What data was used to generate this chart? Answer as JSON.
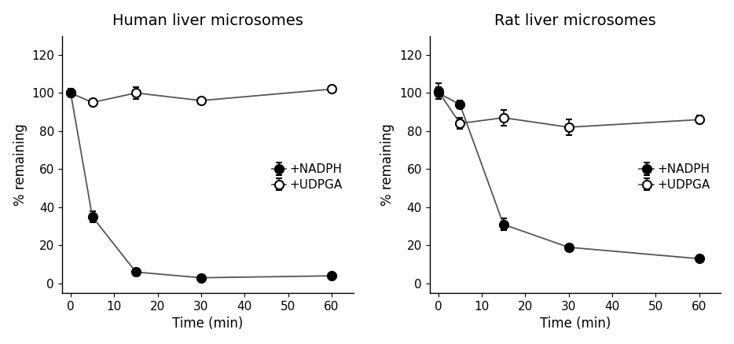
{
  "left_title": "Human liver microsomes",
  "right_title": "Rat liver microsomes",
  "xlabel": "Time (min)",
  "ylabel": "% remaining",
  "xlim": [
    -2,
    65
  ],
  "ylim": [
    -5,
    130
  ],
  "yticks": [
    0,
    20,
    40,
    60,
    80,
    100,
    120
  ],
  "xticks": [
    0,
    10,
    20,
    30,
    40,
    50,
    60
  ],
  "human_nadph_x": [
    0,
    5,
    15,
    30,
    60
  ],
  "human_nadph_y": [
    100,
    35,
    6,
    3,
    4
  ],
  "human_nadph_yerr": [
    2,
    3,
    1,
    0.5,
    0.5
  ],
  "human_udpga_x": [
    0,
    5,
    15,
    30,
    60
  ],
  "human_udpga_y": [
    100,
    95,
    100,
    96,
    102
  ],
  "human_udpga_yerr": [
    2,
    1,
    3,
    1,
    1
  ],
  "rat_nadph_x": [
    0,
    5,
    15,
    30,
    60
  ],
  "rat_nadph_y": [
    100,
    94,
    31,
    19,
    13
  ],
  "rat_nadph_yerr": [
    3,
    2,
    3,
    1,
    1
  ],
  "rat_udpga_x": [
    0,
    5,
    15,
    30,
    60
  ],
  "rat_udpga_y": [
    101,
    84,
    87,
    82,
    86
  ],
  "rat_udpga_yerr": [
    4,
    3,
    4,
    4,
    2
  ],
  "line_color": "#555555",
  "nadph_marker_face": "#000000",
  "nadph_marker_edge": "#000000",
  "udpga_marker_face": "#ffffff",
  "udpga_marker_edge": "#000000",
  "nadph_label": "+NADPH",
  "udpga_label": "+UDPGA",
  "title_fontsize": 14,
  "label_fontsize": 12,
  "tick_fontsize": 11,
  "legend_fontsize": 11,
  "marker_size": 8,
  "line_width": 1.3,
  "elinewidth": 1.2,
  "capsize": 3,
  "background_color": "#ffffff"
}
